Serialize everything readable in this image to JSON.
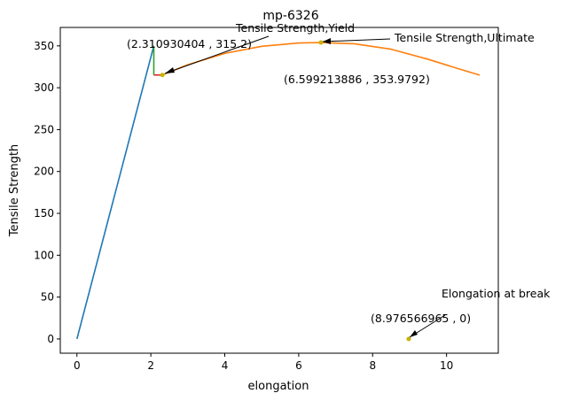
{
  "chart_data": {
    "type": "line",
    "title": "mp-6326",
    "xlabel": "elongation",
    "ylabel": "Tensile Strength",
    "xlim": [
      -0.45,
      11.4
    ],
    "ylim": [
      -17,
      372
    ],
    "xticks": [
      0,
      2,
      4,
      6,
      8,
      10
    ],
    "yticks": [
      0,
      50,
      100,
      150,
      200,
      250,
      300,
      350
    ],
    "grid": false,
    "series": [
      {
        "color": "#1f77b4",
        "x": [
          0,
          2.08
        ],
        "y": [
          0,
          350
        ]
      },
      {
        "color": "#2ca02c",
        "x": [
          2.08,
          2.08
        ],
        "y": [
          350,
          315.2
        ]
      },
      {
        "color": "#d62728",
        "x": [
          2.08,
          2.31
        ],
        "y": [
          315.2,
          315.2
        ]
      },
      {
        "color": "#ff7f0e",
        "x": [
          2.31,
          3.0,
          4.0,
          5.0,
          6.0,
          6.6,
          7.5,
          8.5,
          9.5,
          10.3,
          10.9
        ],
        "y": [
          315.2,
          327.5,
          341.0,
          349.5,
          353.4,
          353.98,
          352.5,
          346.0,
          334.0,
          323.0,
          315.0
        ]
      }
    ],
    "points": [
      {
        "name": "yield",
        "x": 2.310930404,
        "y": 315.2,
        "color": "#c8b400"
      },
      {
        "name": "ultimate",
        "x": 6.599213886,
        "y": 353.9792,
        "color": "#c8b400"
      },
      {
        "name": "break",
        "x": 8.976566965,
        "y": 0,
        "color": "#c8b400"
      }
    ],
    "annotations": [
      {
        "id": "yield",
        "label": "Tensile Strength,Yield",
        "coords": "(2.310930404 , 315.2)",
        "x": 2.310930404,
        "y": 315.2
      },
      {
        "id": "ultimate",
        "label": "Tensile Strength,Ultimate",
        "coords": "(6.599213886 , 353.9792)",
        "x": 6.599213886,
        "y": 353.9792
      },
      {
        "id": "break",
        "label": "Elongation at break",
        "coords": "(8.976566965 , 0)",
        "x": 8.976566965,
        "y": 0
      }
    ]
  }
}
